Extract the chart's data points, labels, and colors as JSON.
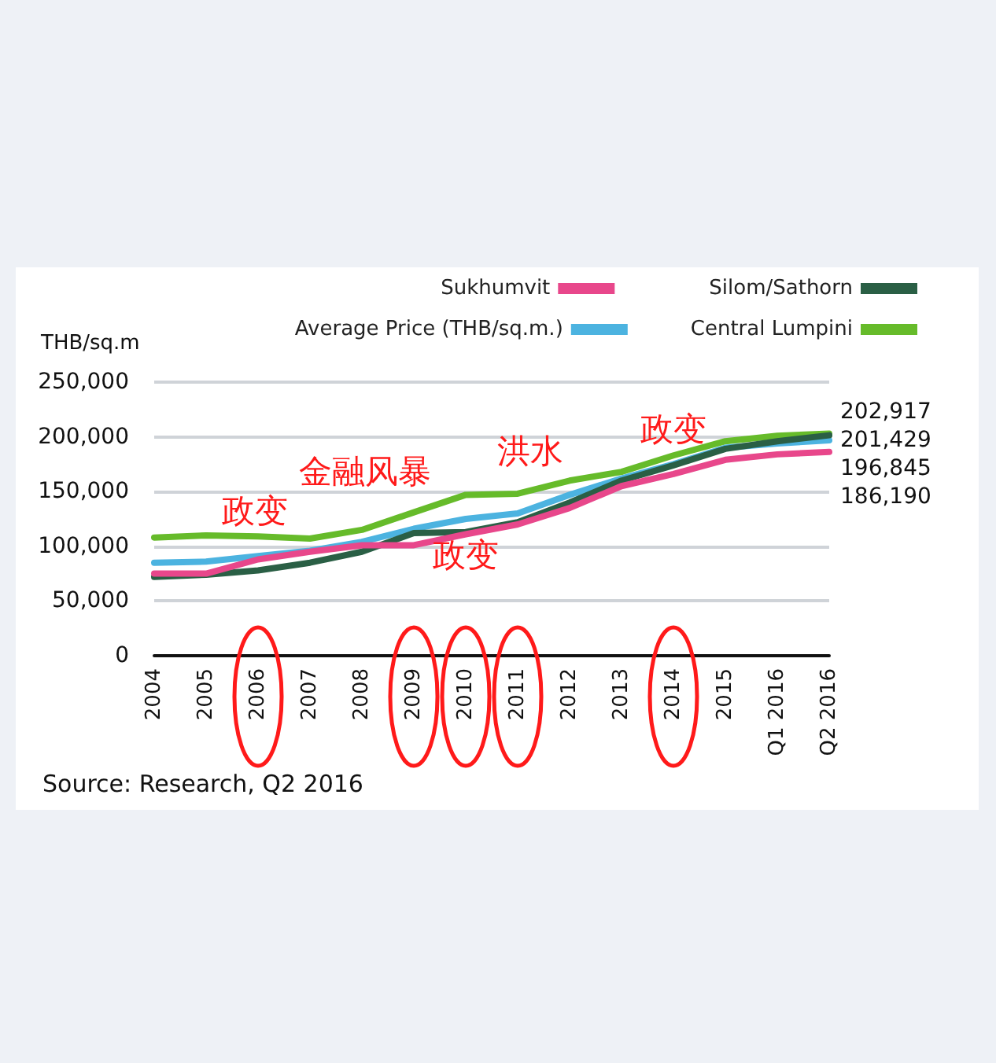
{
  "chart_data": {
    "type": "line",
    "ylabel": "THB/sq.m",
    "categories": [
      "2004",
      "2005",
      "2006",
      "2007",
      "2008",
      "2009",
      "2010",
      "2011",
      "2012",
      "2013",
      "2014",
      "2015",
      "Q1 2016",
      "Q2 2016"
    ],
    "series": [
      {
        "name": "Sukhumvit",
        "color": "#e8478b",
        "values": [
          75000,
          75000,
          88000,
          95000,
          101000,
          101000,
          111000,
          120000,
          135000,
          155000,
          166000,
          179000,
          184000,
          186190
        ],
        "value_labels": [
          null,
          null,
          null,
          null,
          null,
          null,
          null,
          null,
          null,
          null,
          null,
          null,
          null,
          "186,190"
        ]
      },
      {
        "name": "Silom/Sathorn",
        "color": "#2a5f45",
        "values": [
          72000,
          74000,
          78000,
          85000,
          95000,
          112000,
          113000,
          122000,
          140000,
          160000,
          174000,
          189000,
          196000,
          201429
        ],
        "value_labels": [
          null,
          null,
          null,
          null,
          null,
          null,
          null,
          null,
          null,
          null,
          null,
          null,
          null,
          "201,429"
        ]
      },
      {
        "name": "Average Price (THB/sq.m.)",
        "color": "#4cb3e0",
        "values": [
          85000,
          86000,
          91000,
          96000,
          104000,
          116000,
          125000,
          130000,
          147000,
          162000,
          175000,
          190000,
          194000,
          196845
        ],
        "value_labels": [
          null,
          null,
          null,
          null,
          null,
          null,
          null,
          null,
          null,
          null,
          null,
          null,
          null,
          "196,845"
        ]
      },
      {
        "name": "Central Lumpini",
        "color": "#66bb2a",
        "values": [
          108000,
          110000,
          109000,
          107000,
          115000,
          131000,
          147000,
          148000,
          160000,
          168000,
          183000,
          196000,
          201000,
          202917
        ],
        "value_labels": [
          null,
          null,
          null,
          null,
          null,
          null,
          null,
          null,
          null,
          null,
          null,
          null,
          null,
          "202,917"
        ]
      }
    ],
    "ylim": [
      0,
      250000
    ],
    "yticks": [
      0,
      {
        "value": 50000,
        "label": "50,000"
      },
      {
        "value": 100000,
        "label": "100,000"
      },
      {
        "value": 150000,
        "label": "150,000"
      },
      {
        "value": 200000,
        "label": "200,000"
      },
      {
        "value": 250000,
        "label": "250,000"
      }
    ],
    "grid": "y",
    "legend": "top right",
    "marker": "none",
    "line_style": "solid",
    "annotations": [
      "政变",
      "金融风暴",
      "洪水",
      "政变",
      "政变",
      "Source: Research, Q2 2016"
    ]
  }
}
